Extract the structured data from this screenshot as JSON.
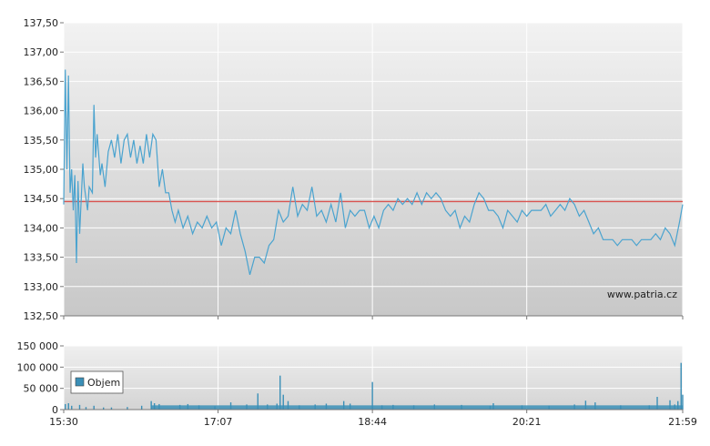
{
  "chart_data": [
    {
      "type": "line",
      "name": "",
      "x_unit": "time",
      "x_ticks": [
        "15:30",
        "17:07",
        "18:44",
        "20:21",
        "21:59"
      ],
      "y_ticks": [
        "132,50",
        "133,00",
        "133,50",
        "134,00",
        "134,50",
        "135,00",
        "135,50",
        "136,00",
        "136,50",
        "137,00",
        "137,50"
      ],
      "ylim": [
        132.5,
        137.5
      ],
      "xlim": [
        "15:30",
        "21:59"
      ],
      "grid": true,
      "reference_line": {
        "value": 134.45,
        "color": "#d9534f"
      },
      "series": [
        {
          "color": "#4aa3cf",
          "points": [
            [
              "15:30",
              134.4
            ],
            [
              "15:31",
              136.7
            ],
            [
              "15:32",
              135.0
            ],
            [
              "15:33",
              136.6
            ],
            [
              "15:34",
              134.6
            ],
            [
              "15:35",
              135.0
            ],
            [
              "15:36",
              134.3
            ],
            [
              "15:37",
              134.9
            ],
            [
              "15:38",
              133.4
            ],
            [
              "15:39",
              134.8
            ],
            [
              "15:40",
              133.9
            ],
            [
              "15:42",
              135.1
            ],
            [
              "15:43",
              134.7
            ],
            [
              "15:45",
              134.3
            ],
            [
              "15:46",
              134.7
            ],
            [
              "15:48",
              134.6
            ],
            [
              "15:49",
              136.1
            ],
            [
              "15:50",
              135.2
            ],
            [
              "15:51",
              135.6
            ],
            [
              "15:53",
              134.9
            ],
            [
              "15:54",
              135.1
            ],
            [
              "15:56",
              134.7
            ],
            [
              "15:58",
              135.3
            ],
            [
              "16:00",
              135.5
            ],
            [
              "16:02",
              135.2
            ],
            [
              "16:04",
              135.6
            ],
            [
              "16:06",
              135.1
            ],
            [
              "16:08",
              135.5
            ],
            [
              "16:10",
              135.6
            ],
            [
              "16:12",
              135.2
            ],
            [
              "16:14",
              135.5
            ],
            [
              "16:16",
              135.1
            ],
            [
              "16:18",
              135.4
            ],
            [
              "16:20",
              135.1
            ],
            [
              "16:22",
              135.6
            ],
            [
              "16:24",
              135.2
            ],
            [
              "16:26",
              135.6
            ],
            [
              "16:28",
              135.5
            ],
            [
              "16:30",
              134.7
            ],
            [
              "16:32",
              135.0
            ],
            [
              "16:34",
              134.6
            ],
            [
              "16:36",
              134.6
            ],
            [
              "16:38",
              134.3
            ],
            [
              "16:40",
              134.1
            ],
            [
              "16:42",
              134.3
            ],
            [
              "16:45",
              134.0
            ],
            [
              "16:48",
              134.2
            ],
            [
              "16:51",
              133.9
            ],
            [
              "16:54",
              134.1
            ],
            [
              "16:57",
              134.0
            ],
            [
              "17:00",
              134.2
            ],
            [
              "17:03",
              134.0
            ],
            [
              "17:06",
              134.1
            ],
            [
              "17:09",
              133.7
            ],
            [
              "17:12",
              134.0
            ],
            [
              "17:15",
              133.9
            ],
            [
              "17:18",
              134.3
            ],
            [
              "17:21",
              133.9
            ],
            [
              "17:24",
              133.6
            ],
            [
              "17:27",
              133.2
            ],
            [
              "17:30",
              133.5
            ],
            [
              "17:33",
              133.5
            ],
            [
              "17:36",
              133.4
            ],
            [
              "17:39",
              133.7
            ],
            [
              "17:42",
              133.8
            ],
            [
              "17:45",
              134.3
            ],
            [
              "17:48",
              134.1
            ],
            [
              "17:51",
              134.2
            ],
            [
              "17:54",
              134.7
            ],
            [
              "17:57",
              134.2
            ],
            [
              "18:00",
              134.4
            ],
            [
              "18:03",
              134.3
            ],
            [
              "18:06",
              134.7
            ],
            [
              "18:09",
              134.2
            ],
            [
              "18:12",
              134.3
            ],
            [
              "18:15",
              134.1
            ],
            [
              "18:18",
              134.4
            ],
            [
              "18:21",
              134.1
            ],
            [
              "18:24",
              134.6
            ],
            [
              "18:27",
              134.0
            ],
            [
              "18:30",
              134.3
            ],
            [
              "18:33",
              134.2
            ],
            [
              "18:36",
              134.3
            ],
            [
              "18:39",
              134.3
            ],
            [
              "18:42",
              134.0
            ],
            [
              "18:45",
              134.2
            ],
            [
              "18:48",
              134.0
            ],
            [
              "18:51",
              134.3
            ],
            [
              "18:54",
              134.4
            ],
            [
              "18:57",
              134.3
            ],
            [
              "19:00",
              134.5
            ],
            [
              "19:03",
              134.4
            ],
            [
              "19:06",
              134.5
            ],
            [
              "19:09",
              134.4
            ],
            [
              "19:12",
              134.6
            ],
            [
              "19:15",
              134.4
            ],
            [
              "19:18",
              134.6
            ],
            [
              "19:21",
              134.5
            ],
            [
              "19:24",
              134.6
            ],
            [
              "19:27",
              134.5
            ],
            [
              "19:30",
              134.3
            ],
            [
              "19:33",
              134.2
            ],
            [
              "19:36",
              134.3
            ],
            [
              "19:39",
              134.0
            ],
            [
              "19:42",
              134.2
            ],
            [
              "19:45",
              134.1
            ],
            [
              "19:48",
              134.4
            ],
            [
              "19:51",
              134.6
            ],
            [
              "19:54",
              134.5
            ],
            [
              "19:57",
              134.3
            ],
            [
              "20:00",
              134.3
            ],
            [
              "20:03",
              134.2
            ],
            [
              "20:06",
              134.0
            ],
            [
              "20:09",
              134.3
            ],
            [
              "20:12",
              134.2
            ],
            [
              "20:15",
              134.1
            ],
            [
              "20:18",
              134.3
            ],
            [
              "20:21",
              134.2
            ],
            [
              "20:24",
              134.3
            ],
            [
              "20:27",
              134.3
            ],
            [
              "20:30",
              134.3
            ],
            [
              "20:33",
              134.4
            ],
            [
              "20:36",
              134.2
            ],
            [
              "20:39",
              134.3
            ],
            [
              "20:42",
              134.4
            ],
            [
              "20:45",
              134.3
            ],
            [
              "20:48",
              134.5
            ],
            [
              "20:51",
              134.4
            ],
            [
              "20:54",
              134.2
            ],
            [
              "20:57",
              134.3
            ],
            [
              "21:00",
              134.1
            ],
            [
              "21:03",
              133.9
            ],
            [
              "21:06",
              134.0
            ],
            [
              "21:09",
              133.8
            ],
            [
              "21:12",
              133.8
            ],
            [
              "21:15",
              133.8
            ],
            [
              "21:18",
              133.7
            ],
            [
              "21:21",
              133.8
            ],
            [
              "21:24",
              133.8
            ],
            [
              "21:27",
              133.8
            ],
            [
              "21:30",
              133.7
            ],
            [
              "21:33",
              133.8
            ],
            [
              "21:36",
              133.8
            ],
            [
              "21:39",
              133.8
            ],
            [
              "21:42",
              133.9
            ],
            [
              "21:45",
              133.8
            ],
            [
              "21:48",
              134.0
            ],
            [
              "21:51",
              133.9
            ],
            [
              "21:54",
              133.7
            ],
            [
              "21:57",
              134.1
            ],
            [
              "21:59",
              134.4
            ]
          ]
        }
      ],
      "annotation": "www.patria.cz"
    },
    {
      "type": "bar",
      "name": "Objem",
      "legend": "Objem",
      "legend_position": "left",
      "x_ticks": [
        "15:30",
        "17:07",
        "18:44",
        "20:21",
        "21:59"
      ],
      "y_ticks": [
        "0",
        "50 000",
        "100 000",
        "150 000"
      ],
      "ylim": [
        0,
        150000
      ],
      "grid": true,
      "color": "#3a8fb7",
      "values": [
        [
          "15:31",
          13000
        ],
        [
          "15:33",
          15000
        ],
        [
          "15:35",
          9000
        ],
        [
          "15:40",
          11000
        ],
        [
          "15:44",
          6000
        ],
        [
          "15:49",
          9000
        ],
        [
          "15:55",
          5000
        ],
        [
          "16:00",
          5000
        ],
        [
          "16:10",
          6000
        ],
        [
          "16:19",
          9000
        ],
        [
          "16:25",
          20000
        ],
        [
          "16:27",
          15000
        ],
        [
          "16:30",
          13000
        ],
        [
          "16:43",
          11000
        ],
        [
          "16:48",
          13000
        ],
        [
          "16:55",
          10000
        ],
        [
          "17:05",
          8000
        ],
        [
          "17:15",
          17000
        ],
        [
          "17:25",
          12000
        ],
        [
          "17:32",
          38000
        ],
        [
          "17:38",
          12000
        ],
        [
          "17:44",
          14000
        ],
        [
          "17:46",
          80000
        ],
        [
          "17:48",
          35000
        ],
        [
          "17:51",
          20000
        ],
        [
          "17:58",
          10000
        ],
        [
          "18:08",
          12000
        ],
        [
          "18:15",
          14000
        ],
        [
          "18:26",
          20000
        ],
        [
          "18:30",
          14000
        ],
        [
          "18:44",
          65000
        ],
        [
          "18:50",
          10000
        ],
        [
          "18:57",
          11000
        ],
        [
          "19:10",
          10000
        ],
        [
          "19:23",
          12000
        ],
        [
          "19:40",
          11000
        ],
        [
          "19:58",
          9000
        ],
        [
          "20:00",
          15000
        ],
        [
          "20:18",
          10000
        ],
        [
          "20:35",
          9000
        ],
        [
          "20:51",
          12000
        ],
        [
          "20:58",
          21000
        ],
        [
          "21:04",
          17000
        ],
        [
          "21:20",
          10000
        ],
        [
          "21:38",
          10000
        ],
        [
          "21:43",
          30000
        ],
        [
          "21:51",
          22000
        ],
        [
          "21:54",
          12000
        ],
        [
          "21:56",
          20000
        ],
        [
          "21:58",
          110000
        ],
        [
          "21:59",
          35000
        ]
      ],
      "baseline_volume": 10000
    }
  ]
}
